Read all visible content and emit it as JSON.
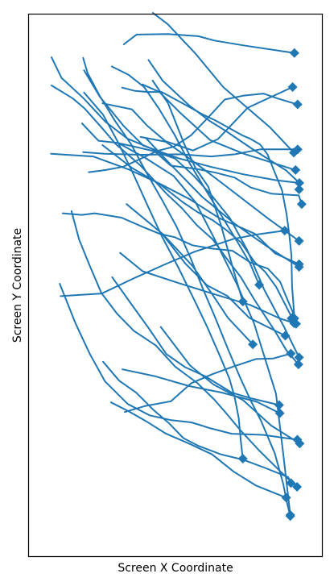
{
  "chart_data": {
    "type": "line",
    "title": "",
    "xlabel": "Screen X Coordinate",
    "ylabel": "Screen Y Coordinate",
    "xlim": [
      0,
      100
    ],
    "ylim": [
      0,
      100
    ],
    "y_inverted": true,
    "grid": false,
    "legend": "none",
    "show_ticks": false,
    "line_color": "#1f77b4",
    "end_marker": "diamond",
    "series": [
      {
        "x": [
          32.4,
          36.7,
          47.4,
          57.8,
          63.3,
          73.2,
          90.6
        ],
        "y": [
          5.5,
          3.7,
          3.6,
          4.0,
          4.8,
          5.7,
          7.1
        ]
      },
      {
        "x": [
          42.2,
          47.5,
          52.9,
          56.9,
          61.2,
          65.5,
          69.8,
          73.0
        ],
        "y": [
          12.2,
          16.4,
          23.8,
          28.4,
          31.8,
          38.8,
          47.2,
          53.0
        ]
      },
      {
        "x": [
          38.7,
          44.5,
          51.5,
          61.9,
          73.3,
          91.0
        ],
        "y": [
          12.9,
          14.3,
          18.1,
          23.2,
          25.7,
          28.7
        ]
      },
      {
        "x": [
          42.3,
          47.4,
          56.8,
          66.3,
          82.4,
          90.4
        ],
        "y": [
          -0.3,
          1.8,
          7.2,
          13.4,
          20.9,
          25.5
        ]
      },
      {
        "x": [
          25.1,
          35.1,
          40.5,
          46.6,
          56.0,
          64.5,
          74.7,
          90.0
        ],
        "y": [
          16.4,
          17.5,
          20.6,
          23.4,
          25.1,
          23.0,
          17.2,
          13.4
        ]
      },
      {
        "x": [
          18.8,
          24.2,
          32.2,
          39.0,
          50.8,
          61.9,
          73.1,
          84.4,
          92.3
        ],
        "y": [
          10.3,
          15.2,
          20.5,
          24.2,
          26.5,
          28.1,
          29.5,
          30.6,
          31.1
        ]
      },
      {
        "x": [
          7.7,
          11.1,
          18.7,
          26.1,
          33.6,
          42.0,
          48.4,
          57.1,
          63.7,
          70.2,
          75.6,
          82.9,
          92.1,
          93.1
        ],
        "y": [
          7.9,
          11.7,
          15.5,
          19.8,
          22.9,
          24.8,
          27.9,
          28.5,
          29.2,
          30.1,
          31.9,
          33.1,
          33.4,
          35.0
        ]
      },
      {
        "x": [
          10.5,
          15.8,
          20.8,
          25.9,
          33.7,
          41.2,
          48.6,
          55.4,
          62.0,
          69.2,
          79.9,
          91.6
        ],
        "y": [
          49.7,
          56.9,
          62.7,
          67.7,
          71.9,
          74.0,
          74.9,
          75.3,
          76.4,
          77.4,
          77.6,
          78.5
        ]
      },
      {
        "x": [
          18.1,
          23.7,
          30.2,
          36.1,
          43.2,
          49.9,
          56.3,
          62.5,
          68.6,
          74.5,
          80.3,
          87.2,
          92.2
        ],
        "y": [
          20.1,
          23.3,
          23.7,
          24.4,
          25.3,
          26.6,
          29.8,
          33.5,
          37.6,
          43.5,
          50.8,
          57.8,
          63.3
        ]
      },
      {
        "x": [
          11.5,
          18.1,
          22.4,
          31.6,
          38.8,
          44.7,
          49.7,
          55.8,
          62.2,
          69.4,
          75.7,
          81.5,
          85.7,
          87.8,
          90.1,
          89.6
        ],
        "y": [
          36.7,
          37.0,
          36.7,
          37.5,
          39.2,
          40.5,
          41.1,
          42.6,
          43.2,
          43.6,
          45.8,
          46.9,
          49.3,
          52.1,
          55.0,
          56.1
        ]
      },
      {
        "x": [
          31.1,
          38.8,
          51.2,
          63.1,
          75.4,
          85.6,
          91.2
        ],
        "y": [
          44.0,
          47.4,
          49.6,
          51.6,
          53.6,
          56.1,
          57.1
        ]
      },
      {
        "x": [
          33.3,
          45.6,
          55.8,
          63.0,
          67.9,
          76.4
        ],
        "y": [
          35.0,
          40.5,
          46.4,
          52.0,
          56.0,
          60.9
        ]
      },
      {
        "x": [
          45.0,
          55.0,
          63.0,
          73.1,
          82.7,
          92.4
        ],
        "y": [
          57.7,
          64.8,
          68.3,
          71.2,
          75.9,
          79.2
        ]
      },
      {
        "x": [
          45.6,
          53.4,
          60.8,
          67.8,
          75.2,
          87.5
        ],
        "y": [
          40.6,
          46.0,
          50.0,
          52.0,
          56.0,
          59.3
        ]
      },
      {
        "x": [
          28.4,
          34.6,
          41.0,
          46.9,
          53.3,
          60.2,
          69.2,
          76.1,
          85.4
        ],
        "y": [
          48.5,
          53.2,
          58.0,
          62.7,
          65.1,
          66.8,
          69.8,
          70.9,
          72.1
        ]
      },
      {
        "x": [
          14.5,
          17.1,
          20.6,
          24.7,
          30.0,
          35.8,
          43.3,
          49.9,
          57.4,
          63.1,
          67.3,
          72.1,
          78.6,
          85.9,
          91.5
        ],
        "y": [
          36.3,
          41.5,
          46.2,
          51.4,
          55.2,
          58.4,
          61.1,
          65.0,
          68.0,
          71.0,
          73.6,
          76.7,
          80.5,
          84.4,
          87.2
        ]
      },
      {
        "x": [
          25.3,
          30.8,
          36.6,
          42.5,
          47.7,
          52.7,
          57.7,
          65.5,
          73.2,
          80.6,
          88.5,
          89.4
        ],
        "y": [
          64.1,
          67.6,
          69.8,
          73.0,
          75.4,
          78.2,
          79.6,
          81.2,
          82.2,
          83.7,
          85.4,
          86.5
        ]
      },
      {
        "x": [
          7.7,
          15.0,
          19.1,
          25.0,
          29.6,
          38.1,
          46.8,
          52.3,
          57.3,
          62.7,
          67.4,
          72.3,
          76.9,
          84.0,
          88.0,
          92.0
        ],
        "y": [
          13.1,
          15.5,
          17.4,
          21.0,
          23.9,
          27.9,
          33.0,
          35.8,
          38.9,
          41.5,
          45.0,
          48.5,
          52.6,
          58.5,
          62.1,
          64.6
        ]
      },
      {
        "x": [
          38.1,
          46.7,
          53.6,
          65.1,
          81.7,
          92.2
        ],
        "y": [
          22.6,
          23.5,
          26.1,
          30.8,
          37.7,
          41.8
        ]
      },
      {
        "x": [
          39.9,
          48.0,
          59.2,
          70.4,
          81.5,
          92.2
        ],
        "y": [
          22.8,
          27.5,
          33.7,
          38.7,
          42.9,
          46.6
        ]
      },
      {
        "x": [
          10.8,
          24.9,
          36.6,
          46.1,
          56.5,
          70.0,
          78.0,
          87.3
        ],
        "y": [
          52.0,
          51.5,
          48.5,
          46.2,
          43.8,
          41.4,
          40.6,
          39.9
        ]
      },
      {
        "x": [
          32.7,
          39.4,
          48.5,
          55.3,
          62.6,
          69.7,
          77.5,
          83.4,
          89.4
        ],
        "y": [
          73.4,
          72.3,
          71.4,
          68.1,
          66.4,
          65.0,
          63.6,
          63.5,
          62.6
        ]
      },
      {
        "x": [
          7.5,
          21.9,
          34.0,
          44.5,
          54.9,
          65.0,
          77.2,
          84.0,
          92.2
        ],
        "y": [
          25.7,
          26.2,
          28.6,
          31.2,
          34.1,
          37.6,
          40.5,
          44.1,
          46.1
        ]
      },
      {
        "x": [
          18.5,
          25.7,
          38.3,
          51.7,
          62.2,
          70.3,
          78.9,
          91.7
        ],
        "y": [
          25.4,
          25.7,
          25.9,
          25.8,
          26.2,
          25.8,
          24.9,
          24.9
        ]
      },
      {
        "x": [
          20.4,
          26.2,
          32.2,
          37.9,
          43.7,
          49.4,
          55.3,
          61.0,
          66.8,
          73.0,
          80.0,
          84.9,
          91.7
        ],
        "y": [
          29.1,
          28.7,
          28.1,
          26.7,
          25.2,
          24.4,
          22.3,
          19.1,
          15.7,
          15.0,
          14.6,
          15.5,
          16.6
        ]
      },
      {
        "x": [
          30.4,
          39.8,
          49.4,
          56.9,
          63.4,
          71.0,
          76.8,
          84.3,
          86.7,
          89.2
        ],
        "y": [
          23.7,
          26.5,
          29.8,
          34.7,
          41.5,
          49.8,
          57.0,
          70.0,
          80.7,
          92.4
        ]
      },
      {
        "x": [
          18.8,
          25.3,
          30.4,
          35.5,
          40.7,
          45.4,
          50.8,
          55.8,
          60.7,
          65.3,
          68.4,
          70.2,
          71.6,
          72.3,
          73.0
        ],
        "y": [
          14.4,
          18.5,
          23.6,
          29.3,
          35.5,
          41.0,
          46.5,
          52.0,
          57.5,
          63.2,
          67.2,
          70.6,
          74.5,
          78.7,
          82.0
        ]
      },
      {
        "x": [
          31.9,
          43.2,
          54.7,
          65.9,
          77.8,
          85.6
        ],
        "y": [
          65.5,
          66.8,
          68.6,
          69.8,
          71.5,
          73.6
        ]
      },
      {
        "x": [
          28.0,
          34.2,
          40.3,
          46.8,
          54.6,
          62.5,
          69.9,
          77.6,
          87.8
        ],
        "y": [
          71.6,
          73.3,
          75.2,
          77.4,
          79.2,
          81.2,
          84.4,
          87.0,
          89.2
        ]
      },
      {
        "x": [
          18.5,
          20.0,
          24.0,
          29.3,
          34.8,
          39.9,
          45.3,
          50.4,
          55.2,
          59.5,
          63.3,
          68.1,
          71.9,
          75.8,
          79.2,
          83.9,
          86.8,
          88.1,
          89.2
        ],
        "y": [
          8.0,
          10.8,
          14.9,
          19.6,
          23.9,
          29.0,
          34.1,
          39.2,
          45.0,
          50.8,
          55.6,
          62.0,
          66.8,
          71.4,
          75.0,
          81.0,
          86.7,
          90.2,
          92.6
        ]
      },
      {
        "x": [
          28.3,
          33.9,
          39.3,
          44.5,
          49.6,
          54.9,
          60.0,
          65.8,
          71.4,
          75.4,
          78.6
        ],
        "y": [
          9.6,
          11.1,
          13.4,
          17.5,
          22.1,
          27.5,
          32.1,
          37.2,
          42.2,
          45.9,
          49.9
        ]
      },
      {
        "x": [
          40.8,
          45.6,
          54.7,
          61.8,
          67.2,
          75.9,
          87.8,
          92.3,
          92.2
        ],
        "y": [
          8.4,
          12.2,
          16.8,
          19.7,
          21.5,
          24.7,
          28.8,
          31.1,
          32.3
        ]
      },
      {
        "x": [
          25.1,
          35.1,
          44.6,
          52.4,
          57.3,
          62.8,
          67.4,
          72.4,
          77.0,
          80.6,
          84.4,
          89.4,
          90.5
        ],
        "y": [
          24.1,
          28.3,
          31.3,
          34.6,
          36.4,
          38.0,
          39.8,
          42.1,
          45.7,
          47.5,
          50.3,
          55.6,
          57.0
        ]
      },
      {
        "x": [
          31.8,
          36.2,
          40.7,
          45.3,
          53.5,
          59.1,
          63.4,
          67.8,
          72.8,
          75.4,
          78.9,
          81.4,
          86.4,
          87.9,
          88.9,
          89.6,
          89.8,
          90.3,
          90.6
        ],
        "y": [
          13.5,
          14.1,
          14.3,
          14.3,
          16.7,
          18.4,
          19.5,
          20.8,
          22.3,
          22.9,
          24.0,
          25.8,
          32.5,
          36.8,
          40.8,
          44.5,
          50.3,
          53.7,
          56.1
        ]
      }
    ]
  }
}
